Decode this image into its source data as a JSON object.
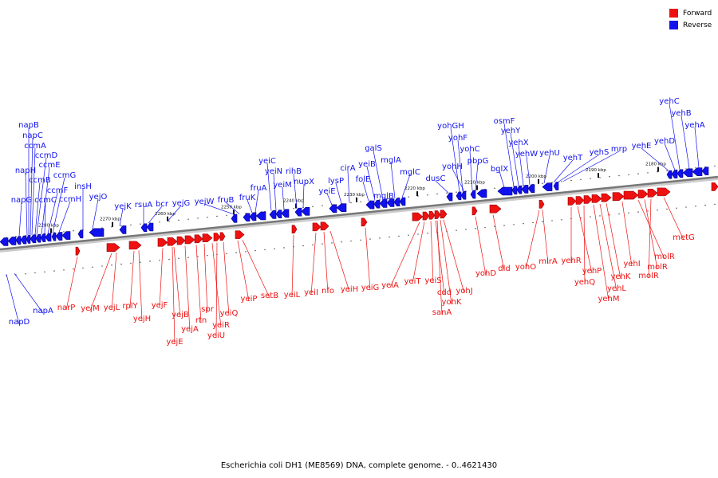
{
  "caption": "Escherichia coli DH1 (ME8569) DNA, complete genome. - 0..4621430",
  "legend": [
    {
      "label": "Forward",
      "color": "#ee1111"
    },
    {
      "label": "Reverse",
      "color": "#1111ee"
    }
  ],
  "colors": {
    "forward": "#ee1111",
    "reverse": "#1111ee",
    "axis": "#888888"
  },
  "scale_labels": [
    "2280 kbp",
    "2270 kbp",
    "2260 kbp",
    "2250 kbp",
    "2240 kbp",
    "2230 kbp",
    "2220 kbp",
    "2210 kbp",
    "2200 kbp",
    "2190 kbp",
    "2180 kbp"
  ],
  "reverse_labels": [
    "napB",
    "napC",
    "ccmA",
    "ccmD",
    "napH",
    "ccmE",
    "ccmB",
    "ccmG",
    "ccmF",
    "napG",
    "ccmC",
    "ccmH",
    "insH",
    "yejO",
    "yejK",
    "rsuA",
    "bcr",
    "yejG",
    "yejW",
    "fruB",
    "fruK",
    "fruA",
    "yeiC",
    "yeiN",
    "yeiM",
    "rihB",
    "nupX",
    "yeiE",
    "lysP",
    "cirA",
    "folE",
    "yeiB",
    "galS",
    "mglB",
    "mglA",
    "mglC",
    "dusC",
    "yohGH",
    "yohF",
    "yohH",
    "yohC",
    "pbpG",
    "bglX",
    "osmF",
    "yehY",
    "yehX",
    "yehW",
    "yehU",
    "yehT",
    "yehS",
    "mrp",
    "yehE",
    "yehD",
    "yehC",
    "yehB",
    "yehA",
    "napD",
    "napA"
  ],
  "forward_labels": [
    "narP",
    "yejM",
    "yejL",
    "rplY",
    "yejH",
    "yejF",
    "yejB",
    "yejE",
    "yejA",
    "rtn",
    "spr",
    "yeiR",
    "yeiU",
    "yeiQ",
    "yeiP",
    "setB",
    "yeiL",
    "yeiI",
    "nfo",
    "yeiH",
    "yeiG",
    "yeiA",
    "yeiT",
    "yeiS",
    "cdd",
    "yohK",
    "sanA",
    "yohJ",
    "yohD",
    "dld",
    "yohO",
    "mlrA",
    "yehR",
    "yehP",
    "yehQ",
    "yehM",
    "yehL",
    "yehK",
    "yehI",
    "molR_a",
    "molR_b",
    "molR_c",
    "metG"
  ],
  "forward_display": [
    "narP",
    "yejM",
    "yejL",
    "rplY",
    "yejH",
    "yejF",
    "yejB",
    "yejE",
    "yejA",
    "rtn",
    "spr",
    "yeiR",
    "yeiU",
    "yeiQ",
    "yeiP",
    "setB",
    "yeiL",
    "yeiI",
    "nfo",
    "yeiH",
    "yeiG",
    "yeiA",
    "yeiT",
    "yeiS",
    "cdd",
    "yohK",
    "sanA",
    "yohJ",
    "yohD",
    "dld",
    "yohO",
    "mlrA",
    "yehR",
    "yehP",
    "yehQ",
    "yehM",
    "yehL",
    "yehK",
    "yehI",
    "molR",
    "molR",
    "molR",
    "metG"
  ]
}
